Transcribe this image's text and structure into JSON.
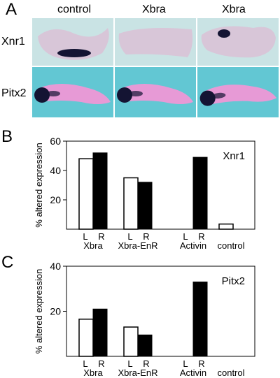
{
  "panel_a": {
    "letter": "A",
    "columns": [
      "control",
      "Xbra",
      "Xbra"
    ],
    "rows": [
      "Xnr1",
      "Pitx2"
    ]
  },
  "panel_b": {
    "letter": "B"
  },
  "panel_c": {
    "letter": "C"
  },
  "colors": {
    "photo_bg_top": "#c9e3e4",
    "photo_bg_bottom": "#62c7d3",
    "embryo_top": "#d8c6d8",
    "embryo_bottom": "#e79ad6",
    "stain": "#141433",
    "bar_fill": "#000000",
    "bar_open": "#ffffff"
  },
  "chart_data": [
    {
      "type": "bar",
      "title": "Xnr1",
      "ylabel": "% altered expression",
      "ylim": [
        0,
        60
      ],
      "yticks": [
        20,
        40,
        60
      ],
      "groups": [
        {
          "name": "Xbra",
          "L": 48,
          "R": 52
        },
        {
          "name": "Xbra-EnR",
          "L": 35,
          "R": 32
        },
        {
          "name": "Activin",
          "L": 0,
          "R": 49
        },
        {
          "name": "control",
          "control": 3.5
        }
      ],
      "sublabels": {
        "L": "L",
        "R": "R"
      }
    },
    {
      "type": "bar",
      "title": "Pitx2",
      "ylabel": "% altered expression",
      "ylim": [
        0,
        40
      ],
      "yticks": [
        20,
        40
      ],
      "groups": [
        {
          "name": "Xbra",
          "L": 16.5,
          "R": 21
        },
        {
          "name": "Xbra-EnR",
          "L": 13,
          "R": 9.5
        },
        {
          "name": "Activin",
          "L": 0,
          "R": 33
        },
        {
          "name": "control",
          "control": 0
        }
      ],
      "sublabels": {
        "L": "L",
        "R": "R"
      }
    }
  ]
}
